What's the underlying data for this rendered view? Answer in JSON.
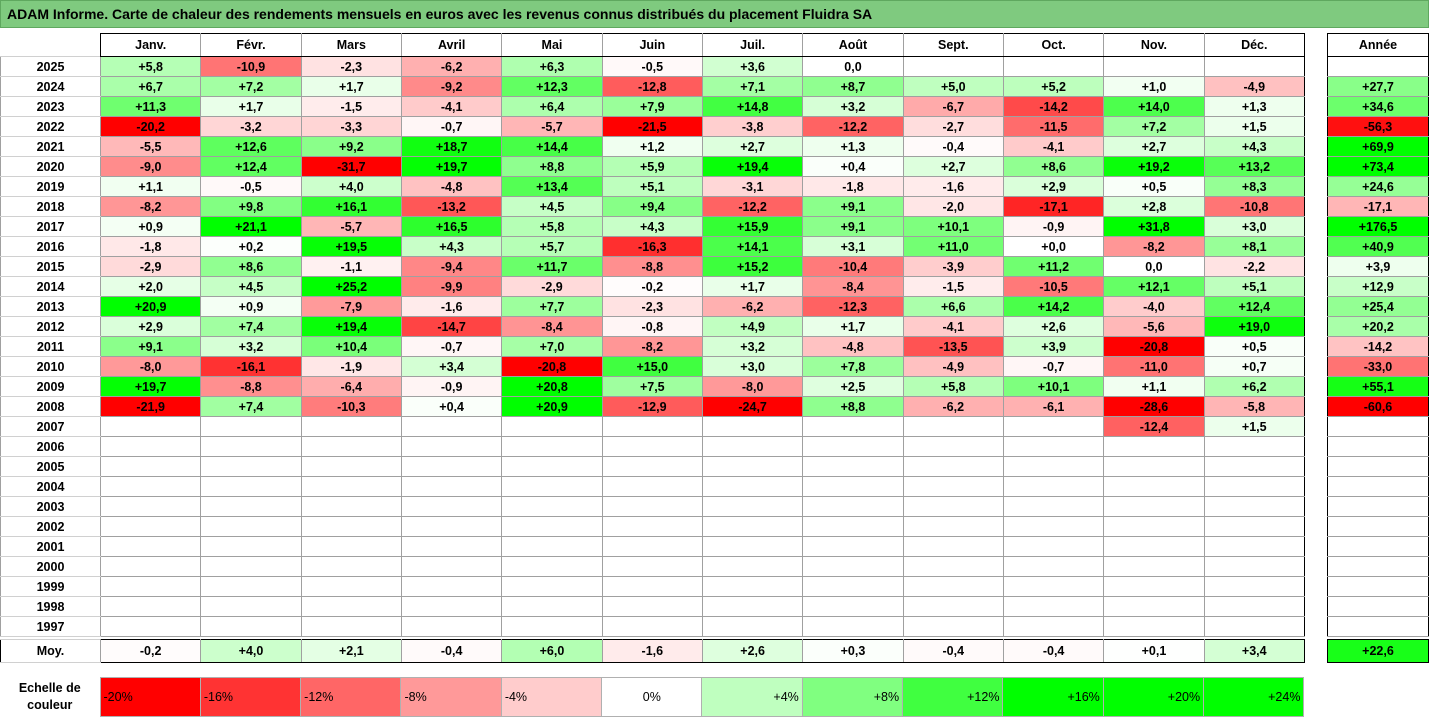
{
  "title": "ADAM Informe. Carte de chaleur des rendements mensuels en euros avec les revenus connus distribués du placement Fluidra SA",
  "months": [
    "Janv.",
    "Févr.",
    "Mars",
    "Avril",
    "Mai",
    "Juin",
    "Juil.",
    "Août",
    "Sept.",
    "Oct.",
    "Nov.",
    "Déc."
  ],
  "year_header": "Année",
  "avg_label": "Moy.",
  "scale_label": "Echelle de couleur",
  "colors": {
    "banner": "#7fca7f",
    "negative_max": "#ff0000",
    "positive_max": "#00ff00",
    "neutral": "#ffffff"
  },
  "chart_data": {
    "type": "heatmap",
    "title": "ADAM Informe. Carte de chaleur des rendements mensuels en euros avec les revenus connus distribués du placement Fluidra SA",
    "x_categories": [
      "Janv.",
      "Févr.",
      "Mars",
      "Avril",
      "Mai",
      "Juin",
      "Juil.",
      "Août",
      "Sept.",
      "Oct.",
      "Nov.",
      "Déc.",
      "Année"
    ],
    "rows": [
      {
        "year": "2025",
        "values": [
          "+5,8",
          "-10,9",
          "-2,3",
          "-6,2",
          "+6,3",
          "-0,5",
          "+3,6",
          "0,0",
          "",
          "",
          "",
          ""
        ],
        "annual": ""
      },
      {
        "year": "2024",
        "values": [
          "+6,7",
          "+7,2",
          "+1,7",
          "-9,2",
          "+12,3",
          "-12,8",
          "+7,1",
          "+8,7",
          "+5,0",
          "+5,2",
          "+1,0",
          "-4,9"
        ],
        "annual": "+27,7"
      },
      {
        "year": "2023",
        "values": [
          "+11,3",
          "+1,7",
          "-1,5",
          "-4,1",
          "+6,4",
          "+7,9",
          "+14,8",
          "+3,2",
          "-6,7",
          "-14,2",
          "+14,0",
          "+1,3"
        ],
        "annual": "+34,6"
      },
      {
        "year": "2022",
        "values": [
          "-20,2",
          "-3,2",
          "-3,3",
          "-0,7",
          "-5,7",
          "-21,5",
          "-3,8",
          "-12,2",
          "-2,7",
          "-11,5",
          "+7,2",
          "+1,5"
        ],
        "annual": "-56,3"
      },
      {
        "year": "2021",
        "values": [
          "-5,5",
          "+12,6",
          "+9,2",
          "+18,7",
          "+14,4",
          "+1,2",
          "+2,7",
          "+1,3",
          "-0,4",
          "-4,1",
          "+2,7",
          "+4,3"
        ],
        "annual": "+69,9"
      },
      {
        "year": "2020",
        "values": [
          "-9,0",
          "+12,4",
          "-31,7",
          "+19,7",
          "+8,8",
          "+5,9",
          "+19,4",
          "+0,4",
          "+2,7",
          "+8,6",
          "+19,2",
          "+13,2"
        ],
        "annual": "+73,4"
      },
      {
        "year": "2019",
        "values": [
          "+1,1",
          "-0,5",
          "+4,0",
          "-4,8",
          "+13,4",
          "+5,1",
          "-3,1",
          "-1,8",
          "-1,6",
          "+2,9",
          "+0,5",
          "+8,3"
        ],
        "annual": "+24,6"
      },
      {
        "year": "2018",
        "values": [
          "-8,2",
          "+9,8",
          "+16,1",
          "-13,2",
          "+4,5",
          "+9,4",
          "-12,2",
          "+9,1",
          "-2,0",
          "-17,1",
          "+2,8",
          "-10,8"
        ],
        "annual": "-17,1"
      },
      {
        "year": "2017",
        "values": [
          "+0,9",
          "+21,1",
          "-5,7",
          "+16,5",
          "+5,8",
          "+4,3",
          "+15,9",
          "+9,1",
          "+10,1",
          "-0,9",
          "+31,8",
          "+3,0"
        ],
        "annual": "+176,5"
      },
      {
        "year": "2016",
        "values": [
          "-1,8",
          "+0,2",
          "+19,5",
          "+4,3",
          "+5,7",
          "-16,3",
          "+14,1",
          "+3,1",
          "+11,0",
          "+0,0",
          "-8,2",
          "+8,1"
        ],
        "annual": "+40,9"
      },
      {
        "year": "2015",
        "values": [
          "-2,9",
          "+8,6",
          "-1,1",
          "-9,4",
          "+11,7",
          "-8,8",
          "+15,2",
          "-10,4",
          "-3,9",
          "+11,2",
          "0,0",
          "-2,2"
        ],
        "annual": "+3,9"
      },
      {
        "year": "2014",
        "values": [
          "+2,0",
          "+4,5",
          "+25,2",
          "-9,9",
          "-2,9",
          "-0,2",
          "+1,7",
          "-8,4",
          "-1,5",
          "-10,5",
          "+12,1",
          "+5,1"
        ],
        "annual": "+12,9"
      },
      {
        "year": "2013",
        "values": [
          "+20,9",
          "+0,9",
          "-7,9",
          "-1,6",
          "+7,7",
          "-2,3",
          "-6,2",
          "-12,3",
          "+6,6",
          "+14,2",
          "-4,0",
          "+12,4"
        ],
        "annual": "+25,4"
      },
      {
        "year": "2012",
        "values": [
          "+2,9",
          "+7,4",
          "+19,4",
          "-14,7",
          "-8,4",
          "-0,8",
          "+4,9",
          "+1,7",
          "-4,1",
          "+2,6",
          "-5,6",
          "+19,0"
        ],
        "annual": "+20,2"
      },
      {
        "year": "2011",
        "values": [
          "+9,1",
          "+3,2",
          "+10,4",
          "-0,7",
          "+7,0",
          "-8,2",
          "+3,2",
          "-4,8",
          "-13,5",
          "+3,9",
          "-20,8",
          "+0,5"
        ],
        "annual": "-14,2"
      },
      {
        "year": "2010",
        "values": [
          "-8,0",
          "-16,1",
          "-1,9",
          "+3,4",
          "-20,8",
          "+15,0",
          "+3,0",
          "+7,8",
          "-4,9",
          "-0,7",
          "-11,0",
          "+0,7"
        ],
        "annual": "-33,0"
      },
      {
        "year": "2009",
        "values": [
          "+19,7",
          "-8,8",
          "-6,4",
          "-0,9",
          "+20,8",
          "+7,5",
          "-8,0",
          "+2,5",
          "+5,8",
          "+10,1",
          "+1,1",
          "+6,2"
        ],
        "annual": "+55,1"
      },
      {
        "year": "2008",
        "values": [
          "-21,9",
          "+7,4",
          "-10,3",
          "+0,4",
          "+20,9",
          "-12,9",
          "-24,7",
          "+8,8",
          "-6,2",
          "-6,1",
          "-28,6",
          "-5,8"
        ],
        "annual": "-60,6"
      },
      {
        "year": "2007",
        "values": [
          "",
          "",
          "",
          "",
          "",
          "",
          "",
          "",
          "",
          "",
          "-12,4",
          "+1,5"
        ],
        "annual": ""
      },
      {
        "year": "2006",
        "values": [
          "",
          "",
          "",
          "",
          "",
          "",
          "",
          "",
          "",
          "",
          "",
          ""
        ],
        "annual": ""
      },
      {
        "year": "2005",
        "values": [
          "",
          "",
          "",
          "",
          "",
          "",
          "",
          "",
          "",
          "",
          "",
          ""
        ],
        "annual": ""
      },
      {
        "year": "2004",
        "values": [
          "",
          "",
          "",
          "",
          "",
          "",
          "",
          "",
          "",
          "",
          "",
          ""
        ],
        "annual": ""
      },
      {
        "year": "2003",
        "values": [
          "",
          "",
          "",
          "",
          "",
          "",
          "",
          "",
          "",
          "",
          "",
          ""
        ],
        "annual": ""
      },
      {
        "year": "2002",
        "values": [
          "",
          "",
          "",
          "",
          "",
          "",
          "",
          "",
          "",
          "",
          "",
          ""
        ],
        "annual": ""
      },
      {
        "year": "2001",
        "values": [
          "",
          "",
          "",
          "",
          "",
          "",
          "",
          "",
          "",
          "",
          "",
          ""
        ],
        "annual": ""
      },
      {
        "year": "2000",
        "values": [
          "",
          "",
          "",
          "",
          "",
          "",
          "",
          "",
          "",
          "",
          "",
          ""
        ],
        "annual": ""
      },
      {
        "year": "1999",
        "values": [
          "",
          "",
          "",
          "",
          "",
          "",
          "",
          "",
          "",
          "",
          "",
          ""
        ],
        "annual": ""
      },
      {
        "year": "1998",
        "values": [
          "",
          "",
          "",
          "",
          "",
          "",
          "",
          "",
          "",
          "",
          "",
          ""
        ],
        "annual": ""
      },
      {
        "year": "1997",
        "values": [
          "",
          "",
          "",
          "",
          "",
          "",
          "",
          "",
          "",
          "",
          "",
          ""
        ],
        "annual": ""
      }
    ],
    "average": {
      "values": [
        "-0,2",
        "+4,0",
        "+2,1",
        "-0,4",
        "+6,0",
        "-1,6",
        "+2,6",
        "+0,3",
        "-0,4",
        "-0,4",
        "+0,1",
        "+3,4"
      ],
      "annual": "+22,6"
    },
    "color_scale": [
      "-20%",
      "-16%",
      "-12%",
      "-8%",
      "-4%",
      "0%",
      "+4%",
      "+8%",
      "+12%",
      "+16%",
      "+20%",
      "+24%"
    ]
  }
}
